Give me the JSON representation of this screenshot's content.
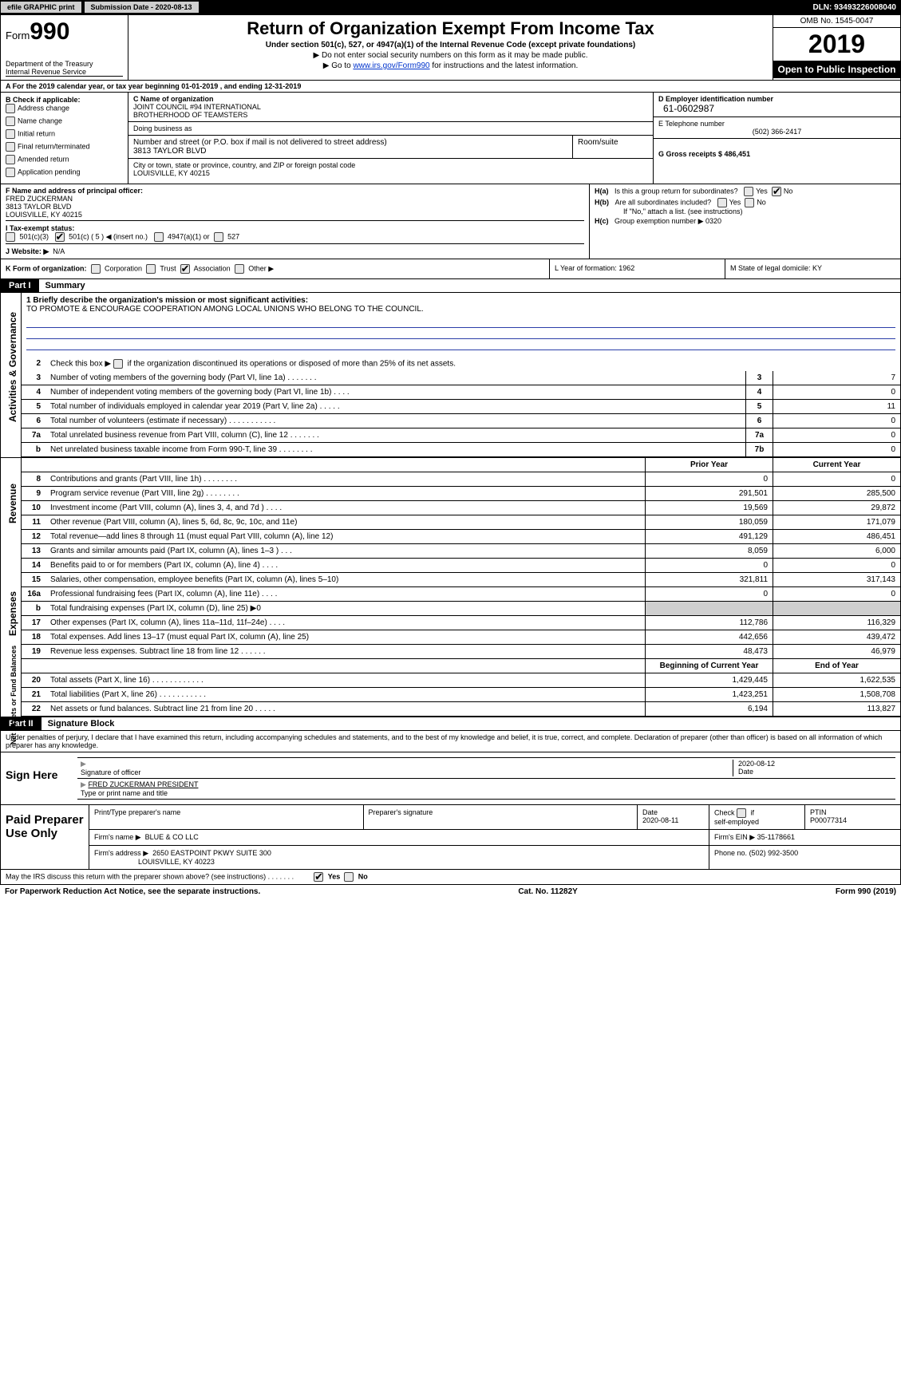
{
  "topbar": {
    "efile": "efile GRAPHIC print",
    "sub_label": "Submission Date - 2020-08-13",
    "dln": "DLN: 93493226008040"
  },
  "header": {
    "form_word": "Form",
    "form_num": "990",
    "dept": "Department of the Treasury",
    "irs": "Internal Revenue Service",
    "title": "Return of Organization Exempt From Income Tax",
    "sub": "Under section 501(c), 527, or 4947(a)(1) of the Internal Revenue Code (except private foundations)",
    "sub2": "▶ Do not enter social security numbers on this form as it may be made public.",
    "sub3_pre": "▶ Go to ",
    "sub3_link": "www.irs.gov/Form990",
    "sub3_post": " for instructions and the latest information.",
    "omb": "OMB No. 1545-0047",
    "year": "2019",
    "open": "Open to Public Inspection"
  },
  "rowA": "A   For the 2019 calendar year, or tax year beginning 01-01-2019       , and ending 12-31-2019",
  "colB": {
    "label": "B Check if applicable:",
    "items": [
      "Address change",
      "Name change",
      "Initial return",
      "Final return/terminated",
      "Amended return",
      "Application pending"
    ]
  },
  "colC": {
    "name_label": "C Name of organization",
    "name1": "JOINT COUNCIL #94 INTERNATIONAL",
    "name2": "BROTHERHOOD OF TEAMSTERS",
    "dba_label": "Doing business as",
    "addr_label": "Number and street (or P.O. box if mail is not delivered to street address)",
    "room_label": "Room/suite",
    "addr": "3813 TAYLOR BLVD",
    "city_label": "City or town, state or province, country, and ZIP or foreign postal code",
    "city": "LOUISVILLE, KY  40215"
  },
  "colD": {
    "d_label": "D Employer identification number",
    "ein": "61-0602987",
    "e_label": "E Telephone number",
    "phone": "(502) 366-2417",
    "g_label": "G Gross receipts $ 486,451"
  },
  "rowF": {
    "f_label": "F Name and address of principal officer:",
    "name": "FRED ZUCKERMAN",
    "addr": "3813 TAYLOR BLVD",
    "city": "LOUISVILLE, KY  40215"
  },
  "rowH": {
    "ha_label": "H(a)",
    "ha_text": "Is this a group return for subordinates?",
    "hb_label": "H(b)",
    "hb_text": "Are all subordinates included?",
    "hb_note": "If \"No,\" attach a list. (see instructions)",
    "hc_label": "H(c)",
    "hc_text": "Group exemption number ▶  0320",
    "yes": "Yes",
    "no": "No"
  },
  "rowI": {
    "label": "I    Tax-exempt status:",
    "c3": "501(c)(3)",
    "c": "501(c) ( 5 ) ◀ (insert no.)",
    "a1": "4947(a)(1) or",
    "s527": "527"
  },
  "rowJ": {
    "label": "J   Website: ▶",
    "val": "N/A"
  },
  "rowK": {
    "label": "K Form of organization:",
    "opts": [
      "Corporation",
      "Trust",
      "Association",
      "Other ▶"
    ],
    "checked_index": 2
  },
  "rowL": {
    "label": "L Year of formation: 1962"
  },
  "rowM": {
    "label": "M State of legal domicile: KY"
  },
  "part1": {
    "tag": "Part I",
    "name": "Summary"
  },
  "summary": {
    "side_labels": [
      "Activities & Governance",
      "Revenue",
      "Expenses",
      "Net Assets or Fund Balances"
    ],
    "line1_label": "1  Briefly describe the organization's mission or most significant activities:",
    "line1_text": "TO PROMOTE & ENCOURAGE COOPERATION AMONG LOCAL UNIONS WHO BELONG TO THE COUNCIL.",
    "line2": "Check this box ▶        if the organization discontinued its operations or disposed of more than 25% of its net assets.",
    "gov_lines": [
      {
        "n": "3",
        "d": "Number of voting members of the governing body (Part VI, line 1a)  .    .    .    .    .    .    .",
        "b": "3",
        "v": "7"
      },
      {
        "n": "4",
        "d": "Number of independent voting members of the governing body (Part VI, line 1b)  .    .    .    .",
        "b": "4",
        "v": "0"
      },
      {
        "n": "5",
        "d": "Total number of individuals employed in calendar year 2019 (Part V, line 2a)  .    .    .    .    .",
        "b": "5",
        "v": "11"
      },
      {
        "n": "6",
        "d": "Total number of volunteers (estimate if necessary)  .    .    .    .    .    .    .    .    .    .    .",
        "b": "6",
        "v": "0"
      },
      {
        "n": "7a",
        "d": "Total unrelated business revenue from Part VIII, column (C), line 12  .    .    .    .    .    .    .",
        "b": "7a",
        "v": "0"
      },
      {
        "n": "b",
        "d": "Net unrelated business taxable income from Form 990-T, line 39  .    .    .    .    .    .    .    .",
        "b": "7b",
        "v": "0"
      }
    ],
    "col_hdr_prior": "Prior Year",
    "col_hdr_curr": "Current Year",
    "rev_lines": [
      {
        "n": "8",
        "d": "Contributions and grants (Part VIII, line 1h)  .    .    .    .    .    .    .    .",
        "p": "0",
        "c": "0"
      },
      {
        "n": "9",
        "d": "Program service revenue (Part VIII, line 2g)  .    .    .    .    .    .    .    .",
        "p": "291,501",
        "c": "285,500"
      },
      {
        "n": "10",
        "d": "Investment income (Part VIII, column (A), lines 3, 4, and 7d )  .    .    .    .",
        "p": "19,569",
        "c": "29,872"
      },
      {
        "n": "11",
        "d": "Other revenue (Part VIII, column (A), lines 5, 6d, 8c, 9c, 10c, and 11e)",
        "p": "180,059",
        "c": "171,079"
      },
      {
        "n": "12",
        "d": "Total revenue—add lines 8 through 11 (must equal Part VIII, column (A), line 12)",
        "p": "491,129",
        "c": "486,451"
      }
    ],
    "exp_lines": [
      {
        "n": "13",
        "d": "Grants and similar amounts paid (Part IX, column (A), lines 1–3 )  .    .    .",
        "p": "8,059",
        "c": "6,000"
      },
      {
        "n": "14",
        "d": "Benefits paid to or for members (Part IX, column (A), line 4)  .    .    .    .",
        "p": "0",
        "c": "0"
      },
      {
        "n": "15",
        "d": "Salaries, other compensation, employee benefits (Part IX, column (A), lines 5–10)",
        "p": "321,811",
        "c": "317,143"
      },
      {
        "n": "16a",
        "d": "Professional fundraising fees (Part IX, column (A), line 11e)  .    .    .    .",
        "p": "0",
        "c": "0"
      },
      {
        "n": "b",
        "d": "Total fundraising expenses (Part IX, column (D), line 25) ▶0",
        "p": "",
        "c": "",
        "shade": true
      },
      {
        "n": "17",
        "d": "Other expenses (Part IX, column (A), lines 11a–11d, 11f–24e)  .    .    .    .",
        "p": "112,786",
        "c": "116,329"
      },
      {
        "n": "18",
        "d": "Total expenses. Add lines 13–17 (must equal Part IX, column (A), line 25)",
        "p": "442,656",
        "c": "439,472"
      },
      {
        "n": "19",
        "d": "Revenue less expenses. Subtract line 18 from line 12  .    .    .    .    .    .",
        "p": "48,473",
        "c": "46,979"
      }
    ],
    "col_hdr_begin": "Beginning of Current Year",
    "col_hdr_end": "End of Year",
    "net_lines": [
      {
        "n": "20",
        "d": "Total assets (Part X, line 16)  .    .    .    .    .    .    .    .    .    .    .    .",
        "p": "1,429,445",
        "c": "1,622,535"
      },
      {
        "n": "21",
        "d": "Total liabilities (Part X, line 26)  .    .    .    .    .    .    .    .    .    .    .",
        "p": "1,423,251",
        "c": "1,508,708"
      },
      {
        "n": "22",
        "d": "Net assets or fund balances. Subtract line 21 from line 20  .    .    .    .    .",
        "p": "6,194",
        "c": "113,827"
      }
    ]
  },
  "part2": {
    "tag": "Part II",
    "name": "Signature Block"
  },
  "perjury": "Under penalties of perjury, I declare that I have examined this return, including accompanying schedules and statements, and to the best of my knowledge and belief, it is true, correct, and complete. Declaration of preparer (other than officer) is based on all information of which preparer has any knowledge.",
  "sign": {
    "label": "Sign Here",
    "sig_officer": "Signature of officer",
    "date": "2020-08-12",
    "date_label": "Date",
    "name": "FRED ZUCKERMAN  PRESIDENT",
    "name_label": "Type or print name and title"
  },
  "paid": {
    "label": "Paid Preparer Use Only",
    "h_print": "Print/Type preparer's name",
    "h_sig": "Preparer's signature",
    "h_date": "Date",
    "date": "2020-08-11",
    "h_check": "Check        if self-employed",
    "h_ptin": "PTIN",
    "ptin": "P00077314",
    "firm_label": "Firm's name    ▶",
    "firm": "BLUE & CO LLC",
    "ein_label": "Firm's EIN ▶",
    "ein": "35-1178661",
    "addr_label": "Firm's address ▶",
    "addr1": "2650 EASTPOINT PKWY SUITE 300",
    "addr2": "LOUISVILLE, KY  40223",
    "phone_label": "Phone no.",
    "phone": "(502) 992-3500"
  },
  "may_discuss": "May the IRS discuss this return with the preparer shown above? (see instructions)  .    .    .    .    .    .    .",
  "footer": {
    "left": "For Paperwork Reduction Act Notice, see the separate instructions.",
    "mid": "Cat. No. 11282Y",
    "right": "Form 990 (2019)"
  },
  "colors": {
    "link": "#0033cc",
    "shade": "#cfcfcf"
  }
}
